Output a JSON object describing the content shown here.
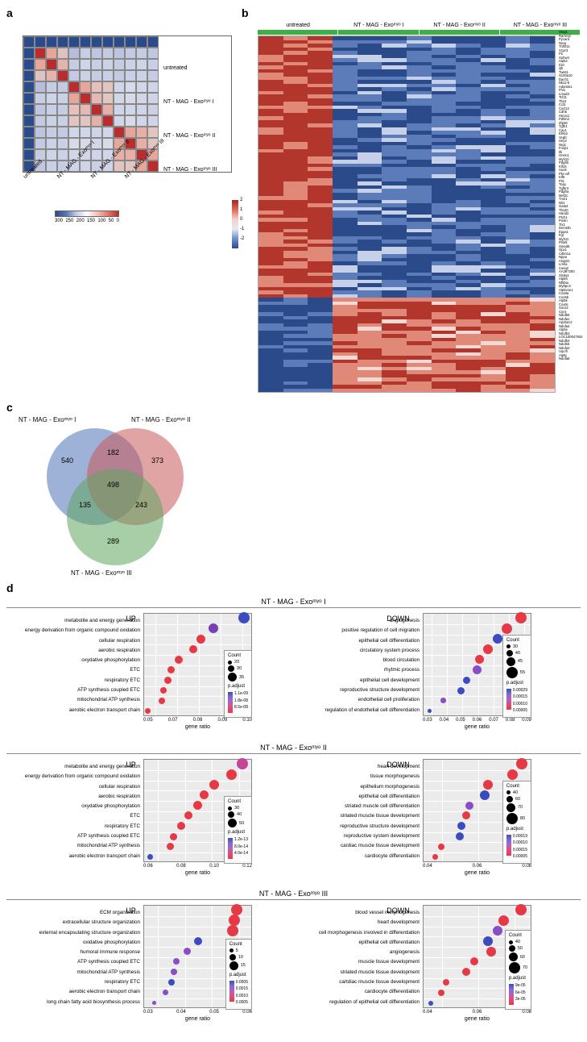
{
  "panel_a": {
    "label": "a",
    "y_labels": [
      "untreated",
      "NT - MAG - Exoᵐʸᵒ I",
      "NT - MAG - Exoᵐʸᵒ II",
      "NT - MAG - Exoᵐʸᵒ III"
    ],
    "x_labels": [
      "untreated",
      "NT - MAG - Exoᵐʸᵒ I",
      "NT - MAG - Exoᵐʸᵒ II",
      "NT - MAG - Exoᵐʸᵒ III"
    ],
    "scale_ticks": [
      "300",
      "250",
      "200",
      "150",
      "100",
      "50",
      "0"
    ],
    "matrix": [
      [
        "#2b4a8a",
        "#2b4a8a",
        "#2b4a8a",
        "#2b4a8a",
        "#2b4a8a",
        "#2b4a8a",
        "#2b4a8a",
        "#2b4a8a",
        "#2b4a8a",
        "#2b4a8a",
        "#2b4a8a",
        "#2b4a8a"
      ],
      [
        "#2b4a8a",
        "#b82e2e",
        "#e8a59a",
        "#dfc3c3",
        "#b7bedd",
        "#c8cee4",
        "#bec6e0",
        "#c3cae1",
        "#bcc5e0",
        "#c3cae1",
        "#c6cce2",
        "#c0c8e0"
      ],
      [
        "#2b4a8a",
        "#e8a59a",
        "#b82e2e",
        "#e3b3ac",
        "#c6cce2",
        "#cfd4e8",
        "#c8cee4",
        "#ccd2e6",
        "#c6cce2",
        "#ccd2e6",
        "#cfd4e8",
        "#c9cfe4"
      ],
      [
        "#2b4a8a",
        "#dfc3c3",
        "#e3b3ac",
        "#b82e2e",
        "#c3cae1",
        "#ccd2e6",
        "#c6cce2",
        "#c9cfe4",
        "#c3cae1",
        "#c9cfe4",
        "#ccd2e6",
        "#c6cce2"
      ],
      [
        "#2b4a8a",
        "#b7bedd",
        "#c6cce2",
        "#c3cae1",
        "#b82e2e",
        "#e8a59a",
        "#e8bfba",
        "#e2c5c1",
        "#d2d6e9",
        "#d6dae9",
        "#d2d6e9",
        "#d0d4e8"
      ],
      [
        "#2b4a8a",
        "#c8cee4",
        "#cfd4e8",
        "#ccd2e6",
        "#e8a59a",
        "#b82e2e",
        "#e6b8b2",
        "#e2c5c1",
        "#d2d6e9",
        "#d6dae9",
        "#d2d6e9",
        "#d0d4e8"
      ],
      [
        "#2b4a8a",
        "#bec6e0",
        "#c8cee4",
        "#c6cce2",
        "#e8bfba",
        "#e6b8b2",
        "#b82e2e",
        "#e6b0a7",
        "#cfd4e8",
        "#d2d6e9",
        "#cfd4e8",
        "#cdd0e5"
      ],
      [
        "#2b4a8a",
        "#c3cae1",
        "#ccd2e6",
        "#c9cfe4",
        "#e2c5c1",
        "#e2c5c1",
        "#e6b0a7",
        "#b82e2e",
        "#d2d6e9",
        "#d6dae9",
        "#d2d6e9",
        "#d0d4e8"
      ],
      [
        "#2b4a8a",
        "#bcc5e0",
        "#c6cce2",
        "#c3cae1",
        "#d2d6e9",
        "#d2d6e9",
        "#cfd4e8",
        "#d2d6e9",
        "#b82e2e",
        "#e8a59a",
        "#e6b0a7",
        "#e2c5c1"
      ],
      [
        "#2b4a8a",
        "#c3cae1",
        "#ccd2e6",
        "#c9cfe4",
        "#d6dae9",
        "#d6dae9",
        "#d2d6e9",
        "#d6dae9",
        "#e8a59a",
        "#b82e2e",
        "#e6b0a7",
        "#e2c5c1"
      ],
      [
        "#2b4a8a",
        "#c6cce2",
        "#cfd4e8",
        "#ccd2e6",
        "#d2d6e9",
        "#d2d6e9",
        "#cfd4e8",
        "#d2d6e9",
        "#e6b0a7",
        "#e6b0a7",
        "#b82e2e",
        "#e8a59a"
      ],
      [
        "#2b4a8a",
        "#c0c8e0",
        "#c9cfe4",
        "#c6cce2",
        "#d0d4e8",
        "#d0d4e8",
        "#cdd0e5",
        "#d0d4e8",
        "#e2c5c1",
        "#e2c5c1",
        "#e8a59a",
        "#b82e2e"
      ]
    ]
  },
  "panel_b": {
    "label": "b",
    "groups": [
      "untreated",
      "NT - MAG - Exoᵐʸᵒ I",
      "NT - MAG - Exoᵐʸᵒ II",
      "NT - MAG - Exoᵐʸᵒ III"
    ],
    "group_widths": [
      25,
      25,
      25,
      25
    ],
    "scale_ticks": [
      "2",
      "1",
      "0",
      "-1",
      "-2"
    ],
    "genes": [
      "Smg1",
      "Rarres2",
      "Pycard",
      "Nrep",
      "Tnfsf11",
      "S1pr3",
      "F5",
      "Suhw4",
      "Hipk2",
      "Il10",
      "Qk",
      "Twist1",
      "S100a10",
      "Dach1",
      "Nkx2-5",
      "Adamts1",
      "Fhl1",
      "Lmod3",
      "Tcf21",
      "Tbx2",
      "Ccl2",
      "Cxcl12",
      "Cdh5",
      "Hmox1",
      "Pdlim3",
      "Zfp36",
      "Tgfb1",
      "Cav1",
      "Efnb2",
      "Vegfc",
      "Hey2",
      "Nrg1",
      "Foxp1",
      "Ilk",
      "Grem1",
      "Myh10",
      "Pdgfrb",
      "Klf15",
      "Sox9",
      "Pkc-alf",
      "Klf6",
      "Flt1",
      "Tcap",
      "Tgfbr3",
      "Pdgfra",
      "Mef2c",
      "Tnni1",
      "Wt1",
      "Gata4",
      "Tbx20",
      "Hand2",
      "Ptch1",
      "Postn",
      "Tlx1",
      "Dnmt3b",
      "Epas1",
      "Fgf",
      "Myh11",
      "Fbln5",
      "Smad6",
      "Gpx1",
      "Cdkn1a",
      "Nppa",
      "Angpt1",
      "Lmna",
      "Casq2",
      "AA387200",
      "Slc8a1",
      "Atp5h",
      "Nfkbia",
      "Mybpc3",
      "Atp6v1e1",
      "Cox8a",
      "Cox5b",
      "Atp5k",
      "Cox6c",
      "Socs3",
      "Cycs",
      "Ndufb6",
      "Ndufa1",
      "Apobec2",
      "Ndufa4",
      "Atp5e",
      "Ndufb3",
      "LOC100047934",
      "Ndufb4",
      "Ndufs6",
      "Ndufa3",
      "Uqcrh",
      "Atp5j",
      "Ndufa6"
    ],
    "rows": 98,
    "cols": 12,
    "block1_top": 72,
    "heatmap_seed": 1
  },
  "panel_c": {
    "label": "c",
    "sets": [
      {
        "name": "NT - MAG - Exoᵐʸᵒ I",
        "color": "#4e73b8"
      },
      {
        "name": "NT - MAG - Exoᵐʸᵒ II",
        "color": "#c9595a"
      },
      {
        "name": "NT - MAG - Exoᵐʸᵒ III",
        "color": "#5fa65f"
      }
    ],
    "numbers": {
      "only1": 540,
      "only2": 373,
      "only3": 289,
      "int12": 182,
      "int13": 135,
      "int23": 243,
      "int123": 498
    }
  },
  "panel_d": {
    "label": "d",
    "sections": [
      {
        "title": "NT - MAG - Exoᵐʸᵒ I",
        "up": {
          "title": "UP",
          "xlim": [
            0.04,
            0.11
          ],
          "xticks": [
            "0.05",
            "0.07",
            "0.08",
            "0.09",
            "0.10"
          ],
          "xlabel": "gene ratio",
          "count_ticks": [
            20,
            30,
            35
          ],
          "padj_ticks": [
            "1.1e-09",
            "1.8e-08",
            "8.5e-08"
          ],
          "terms": [
            {
              "label": "metabolite and energy generation",
              "x": 0.105,
              "size": 14,
              "color": "#3b4cc0"
            },
            {
              "label": "energy  derivation from organic compound oxidation",
              "x": 0.085,
              "size": 12,
              "color": "#7a3fb5"
            },
            {
              "label": "cellular respiration",
              "x": 0.077,
              "size": 11,
              "color": "#e63946"
            },
            {
              "label": "aerobic respiration",
              "x": 0.072,
              "size": 10,
              "color": "#e63946"
            },
            {
              "label": "oxydative phosphorylation",
              "x": 0.063,
              "size": 10,
              "color": "#e63946"
            },
            {
              "label": "ETC",
              "x": 0.058,
              "size": 9,
              "color": "#e63946"
            },
            {
              "label": "respiratory ETC",
              "x": 0.056,
              "size": 9,
              "color": "#e63946"
            },
            {
              "label": "ATP synthesis coupled ETC",
              "x": 0.053,
              "size": 8,
              "color": "#e63946"
            },
            {
              "label": "mitochondrial ATP synthesis",
              "x": 0.052,
              "size": 8,
              "color": "#e63946"
            },
            {
              "label": "aerobic electron transport chain",
              "x": 0.043,
              "size": 7,
              "color": "#e63946"
            }
          ]
        },
        "down": {
          "title": "DOWN",
          "xlim": [
            0.02,
            0.1
          ],
          "xticks": [
            "0.03",
            "0.04",
            "0.05",
            "0.06",
            "0.07",
            "0.08",
            "0.09"
          ],
          "xlabel": "gene ratio",
          "count_ticks": [
            30,
            40,
            45,
            55
          ],
          "padj_ticks": [
            "0.00029",
            "0.00015",
            "0.00010",
            "0.00005"
          ],
          "terms": [
            {
              "label": "angiogenesis",
              "x": 0.092,
              "size": 14,
              "color": "#e63946"
            },
            {
              "label": "positive regulation of cell migration",
              "x": 0.082,
              "size": 13,
              "color": "#e63946"
            },
            {
              "label": "epithelial cell differentiation",
              "x": 0.075,
              "size": 12,
              "color": "#3b4cc0"
            },
            {
              "label": "circulatory system process",
              "x": 0.068,
              "size": 12,
              "color": "#e63946"
            },
            {
              "label": "blood circulation",
              "x": 0.062,
              "size": 11,
              "color": "#e63946"
            },
            {
              "label": "rhytmic process",
              "x": 0.06,
              "size": 11,
              "color": "#8b4dc5"
            },
            {
              "label": "epithelial cell development",
              "x": 0.052,
              "size": 9,
              "color": "#3b4cc0"
            },
            {
              "label": "reproductive structure development",
              "x": 0.048,
              "size": 9,
              "color": "#3b4cc0"
            },
            {
              "label": "endothelial cell proliferation",
              "x": 0.035,
              "size": 7,
              "color": "#8b4dc5"
            },
            {
              "label": "regulation of endothelial cell differentiation",
              "x": 0.025,
              "size": 5,
              "color": "#3b4cc0"
            }
          ]
        }
      },
      {
        "title": "NT - MAG - Exoᵐʸᵒ II",
        "up": {
          "title": "UP",
          "xlim": [
            0.05,
            0.13
          ],
          "xticks": [
            "0.06",
            "0.08",
            "0.10",
            "0.12"
          ],
          "xlabel": "gene ratio",
          "count_ticks": [
            30,
            40,
            50
          ],
          "padj_ticks": [
            "1.2e-13",
            "8.0e-14",
            "4.0e-14"
          ],
          "terms": [
            {
              "label": "metabolite and energy generation",
              "x": 0.123,
              "size": 14,
              "color": "#c5449a"
            },
            {
              "label": "energy  derivation from organic compound oxidation",
              "x": 0.115,
              "size": 13,
              "color": "#e63946"
            },
            {
              "label": "cellular respiration",
              "x": 0.102,
              "size": 12,
              "color": "#e63946"
            },
            {
              "label": "aerobic respiration",
              "x": 0.095,
              "size": 11,
              "color": "#e63946"
            },
            {
              "label": "oxydative phosphorylation",
              "x": 0.09,
              "size": 11,
              "color": "#e63946"
            },
            {
              "label": "ETC",
              "x": 0.083,
              "size": 10,
              "color": "#e63946"
            },
            {
              "label": "respiratory ETC",
              "x": 0.078,
              "size": 10,
              "color": "#e63946"
            },
            {
              "label": "ATP synthesis coupled ETC",
              "x": 0.072,
              "size": 9,
              "color": "#e63946"
            },
            {
              "label": "mitochondrial ATP synthesis",
              "x": 0.07,
              "size": 9,
              "color": "#e63946"
            },
            {
              "label": "aerobic electron transport chain",
              "x": 0.055,
              "size": 7,
              "color": "#3b4cc0"
            }
          ]
        },
        "down": {
          "title": "DOWN",
          "xlim": [
            0.03,
            0.1
          ],
          "xticks": [
            "0.04",
            "0.06",
            "0.08"
          ],
          "xlabel": "gene ratio",
          "count_ticks": [
            40,
            60,
            70,
            80
          ],
          "padj_ticks": [
            "0.00019",
            "0.00010",
            "0.00015",
            "0.00005"
          ],
          "terms": [
            {
              "label": "heart development",
              "x": 0.094,
              "size": 14,
              "color": "#e63946"
            },
            {
              "label": "tissue morphogenesis",
              "x": 0.088,
              "size": 13,
              "color": "#e63946"
            },
            {
              "label": "epithelium morphogenesis",
              "x": 0.072,
              "size": 12,
              "color": "#e63946"
            },
            {
              "label": "epithelial cell differentiation",
              "x": 0.07,
              "size": 12,
              "color": "#3b4cc0"
            },
            {
              "label": "striated muscle cell differentiation",
              "x": 0.06,
              "size": 10,
              "color": "#8b4dc5"
            },
            {
              "label": "striated muscle tissue development",
              "x": 0.058,
              "size": 10,
              "color": "#e63946"
            },
            {
              "label": "reproductive structure development",
              "x": 0.055,
              "size": 10,
              "color": "#3b4cc0"
            },
            {
              "label": "reproductive system development",
              "x": 0.054,
              "size": 10,
              "color": "#3b4cc0"
            },
            {
              "label": "cardiac muscle tissue development",
              "x": 0.042,
              "size": 8,
              "color": "#e63946"
            },
            {
              "label": "cardiocyte differentiation",
              "x": 0.038,
              "size": 7,
              "color": "#e63946"
            }
          ]
        }
      },
      {
        "title": "NT - MAG - Exoᵐʸᵒ III",
        "up": {
          "title": "UP",
          "xlim": [
            0.02,
            0.07
          ],
          "xticks": [
            "0.03",
            "0.04",
            "0.05",
            "0.06"
          ],
          "xlabel": "gene ratio",
          "count_ticks": [
            5,
            10,
            15
          ],
          "padj_ticks": [
            "0.0005",
            "0.0015",
            "0.0010",
            "0.0005"
          ],
          "terms": [
            {
              "label": "ECM organization",
              "x": 0.063,
              "size": 14,
              "color": "#e63946"
            },
            {
              "label": "extracellular structure organization",
              "x": 0.062,
              "size": 14,
              "color": "#e63946"
            },
            {
              "label": "external encapsulating structure organization",
              "x": 0.061,
              "size": 14,
              "color": "#e63946"
            },
            {
              "label": "oxidative phosphorylation",
              "x": 0.045,
              "size": 10,
              "color": "#3b4cc0"
            },
            {
              "label": "humoral immune response",
              "x": 0.04,
              "size": 9,
              "color": "#8b4dc5"
            },
            {
              "label": "ATP synthesis coupled ETC",
              "x": 0.035,
              "size": 8,
              "color": "#8b4dc5"
            },
            {
              "label": "mitochondrial ATP synthesis",
              "x": 0.034,
              "size": 8,
              "color": "#8b4dc5"
            },
            {
              "label": "respiratory ETC",
              "x": 0.033,
              "size": 8,
              "color": "#3b4cc0"
            },
            {
              "label": "aerobic electron transport chain",
              "x": 0.03,
              "size": 7,
              "color": "#8b4dc5"
            },
            {
              "label": "long chain fatty acid biosynthesis process",
              "x": 0.025,
              "size": 5,
              "color": "#8b4dc5"
            }
          ]
        },
        "down": {
          "title": "DOWN",
          "xlim": [
            0.03,
            0.1
          ],
          "xticks": [
            "0.04",
            "0.06",
            "0.08"
          ],
          "xlabel": "gene ratio",
          "count_ticks": [
            40,
            50,
            60,
            70
          ],
          "padj_ticks": [
            "9e-05",
            "6e-05",
            "3e-05"
          ],
          "terms": [
            {
              "label": "blood vessel morphogenesis",
              "x": 0.093,
              "size": 14,
              "color": "#e63946"
            },
            {
              "label": "heart development",
              "x": 0.082,
              "size": 13,
              "color": "#e63946"
            },
            {
              "label": "cell morphogenesis involved in differentiation",
              "x": 0.078,
              "size": 12,
              "color": "#8b4dc5"
            },
            {
              "label": "epithelial cell differentiation",
              "x": 0.072,
              "size": 12,
              "color": "#3b4cc0"
            },
            {
              "label": "angiogenesis",
              "x": 0.074,
              "size": 12,
              "color": "#e63946"
            },
            {
              "label": "muscle tissue development",
              "x": 0.063,
              "size": 10,
              "color": "#e63946"
            },
            {
              "label": "striated muscle tissue development",
              "x": 0.058,
              "size": 10,
              "color": "#e63946"
            },
            {
              "label": "cartdiac muscle tissue development",
              "x": 0.045,
              "size": 8,
              "color": "#e63946"
            },
            {
              "label": "cardiocyte differentiation",
              "x": 0.042,
              "size": 8,
              "color": "#e63946"
            },
            {
              "label": "regulation of epithelial cell differentiation",
              "x": 0.035,
              "size": 6,
              "color": "#3b4cc0"
            }
          ]
        }
      }
    ]
  }
}
